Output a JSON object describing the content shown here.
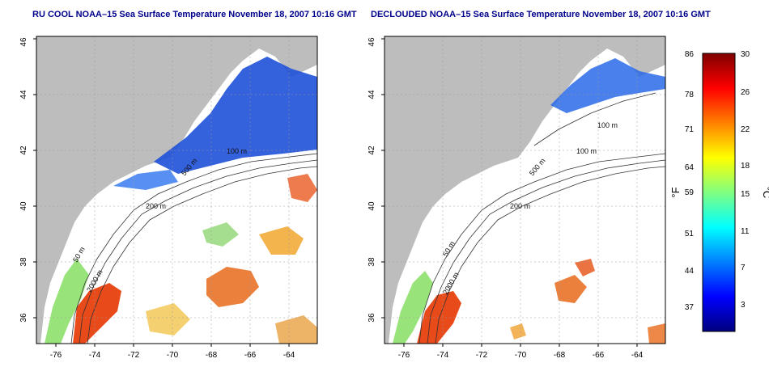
{
  "panels": [
    {
      "title": "RU COOL NOAA–15 Sea Surface Temperature November 18, 2007 10:16 GMT",
      "x_ticks": [
        "-76",
        "-74",
        "-72",
        "-70",
        "-68",
        "-66",
        "-64"
      ],
      "y_ticks": [
        "46",
        "44",
        "42",
        "40",
        "38",
        "36"
      ],
      "contours": [
        "100 m",
        "500 m",
        "200 m",
        "50 m",
        "2000 m"
      ]
    },
    {
      "title": "DECLOUDED NOAA–15 Sea Surface Temperature November 18, 2007 10:16 GMT",
      "x_ticks": [
        "-76",
        "-74",
        "-72",
        "-70",
        "-68",
        "-66",
        "-64"
      ],
      "y_ticks": [
        "46",
        "44",
        "42",
        "40",
        "38",
        "36"
      ],
      "contours": [
        "100 m",
        "100 m",
        "500 m",
        "200 m",
        "50 m",
        "2000 m"
      ]
    }
  ],
  "colorbar": {
    "fahrenheit_label": "°F",
    "celsius_label": "°C",
    "fahrenheit_ticks": [
      "86",
      "78",
      "71",
      "64",
      "59",
      "51",
      "44",
      "37"
    ],
    "celsius_ticks": [
      "30",
      "26",
      "22",
      "18",
      "15",
      "11",
      "7",
      "3"
    ],
    "colors": [
      "#00007f",
      "#0000ff",
      "#0080ff",
      "#00ffff",
      "#80ff80",
      "#ffff00",
      "#ff8000",
      "#ff0000",
      "#7f0000"
    ]
  },
  "colors": {
    "land": "#bdbdbd",
    "ocean": "#ffffff",
    "title": "#00008b"
  }
}
